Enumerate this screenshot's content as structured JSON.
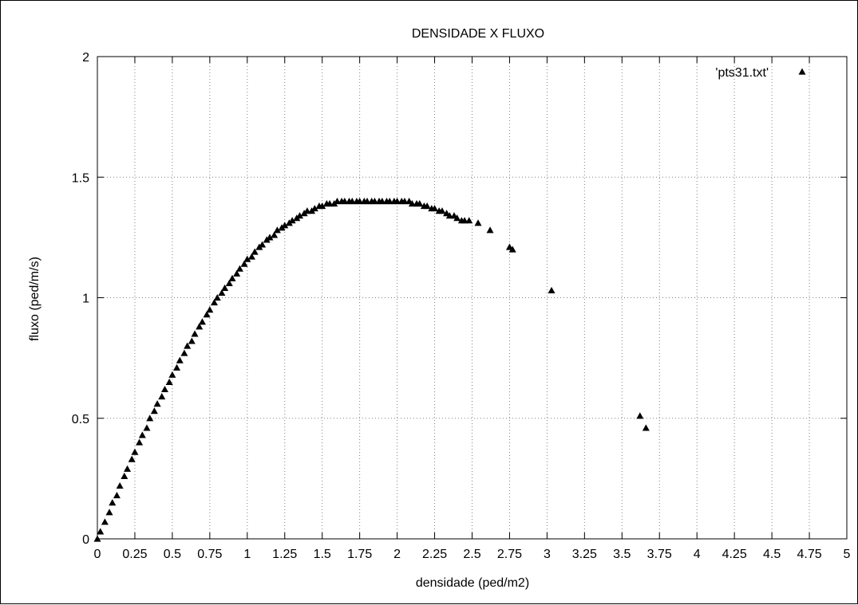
{
  "chart_data": {
    "type": "scatter",
    "title": "DENSIDADE X FLUXO",
    "xlabel": "densidade (ped/m2)",
    "ylabel": "fluxo (ped/m/s)",
    "xlim": [
      0,
      5
    ],
    "ylim": [
      0,
      2
    ],
    "x_ticks": [
      "0",
      "0.25",
      "0.5",
      "0.75",
      "1",
      "1.25",
      "1.5",
      "1.75",
      "2",
      "2.25",
      "2.5",
      "2.75",
      "3",
      "3.25",
      "3.5",
      "3.75",
      "4",
      "4.25",
      "4.5",
      "4.75",
      "5"
    ],
    "x_tick_values": [
      0,
      0.25,
      0.5,
      0.75,
      1,
      1.25,
      1.5,
      1.75,
      2,
      2.25,
      2.5,
      2.75,
      3,
      3.25,
      3.5,
      3.75,
      4,
      4.25,
      4.5,
      4.75,
      5
    ],
    "y_ticks": [
      "0",
      "0.5",
      "1",
      "1.5",
      "2"
    ],
    "y_tick_values": [
      0,
      0.5,
      1,
      1.5,
      2
    ],
    "grid": true,
    "legend_position": "top-right",
    "marker": "triangle",
    "series": [
      {
        "name": "'pts31.txt'",
        "x": [
          0.0,
          0.02,
          0.05,
          0.08,
          0.1,
          0.13,
          0.15,
          0.18,
          0.2,
          0.23,
          0.25,
          0.28,
          0.3,
          0.33,
          0.35,
          0.38,
          0.4,
          0.43,
          0.45,
          0.48,
          0.5,
          0.53,
          0.55,
          0.58,
          0.6,
          0.63,
          0.65,
          0.68,
          0.7,
          0.73,
          0.75,
          0.78,
          0.8,
          0.83,
          0.85,
          0.88,
          0.9,
          0.93,
          0.95,
          0.98,
          1.0,
          1.03,
          1.05,
          1.08,
          1.1,
          1.13,
          1.15,
          1.18,
          1.2,
          1.23,
          1.25,
          1.28,
          1.3,
          1.33,
          1.35,
          1.38,
          1.4,
          1.43,
          1.45,
          1.48,
          1.5,
          1.53,
          1.55,
          1.58,
          1.6,
          1.63,
          1.65,
          1.68,
          1.7,
          1.73,
          1.75,
          1.78,
          1.8,
          1.83,
          1.85,
          1.88,
          1.9,
          1.93,
          1.95,
          1.98,
          2.0,
          2.03,
          2.05,
          2.08,
          2.1,
          2.13,
          2.15,
          2.18,
          2.2,
          2.23,
          2.25,
          2.28,
          2.3,
          2.33,
          2.35,
          2.38,
          2.4,
          2.43,
          2.45,
          2.48,
          2.54,
          2.62,
          2.75,
          2.77,
          3.03,
          3.62,
          3.66
        ],
        "y": [
          0.0,
          0.03,
          0.07,
          0.11,
          0.15,
          0.18,
          0.22,
          0.26,
          0.29,
          0.33,
          0.36,
          0.4,
          0.43,
          0.46,
          0.5,
          0.53,
          0.56,
          0.59,
          0.62,
          0.65,
          0.68,
          0.71,
          0.74,
          0.77,
          0.8,
          0.82,
          0.85,
          0.88,
          0.9,
          0.93,
          0.95,
          0.98,
          1.0,
          1.02,
          1.04,
          1.06,
          1.08,
          1.1,
          1.12,
          1.14,
          1.16,
          1.17,
          1.19,
          1.21,
          1.22,
          1.24,
          1.25,
          1.26,
          1.28,
          1.29,
          1.3,
          1.31,
          1.32,
          1.33,
          1.34,
          1.35,
          1.36,
          1.36,
          1.37,
          1.38,
          1.38,
          1.39,
          1.39,
          1.39,
          1.4,
          1.4,
          1.4,
          1.4,
          1.4,
          1.4,
          1.4,
          1.4,
          1.4,
          1.4,
          1.4,
          1.4,
          1.4,
          1.4,
          1.4,
          1.4,
          1.4,
          1.4,
          1.4,
          1.4,
          1.39,
          1.39,
          1.39,
          1.38,
          1.38,
          1.37,
          1.37,
          1.36,
          1.36,
          1.35,
          1.34,
          1.34,
          1.33,
          1.32,
          1.32,
          1.32,
          1.31,
          1.28,
          1.21,
          1.2,
          1.03,
          0.51,
          0.46
        ]
      }
    ]
  }
}
